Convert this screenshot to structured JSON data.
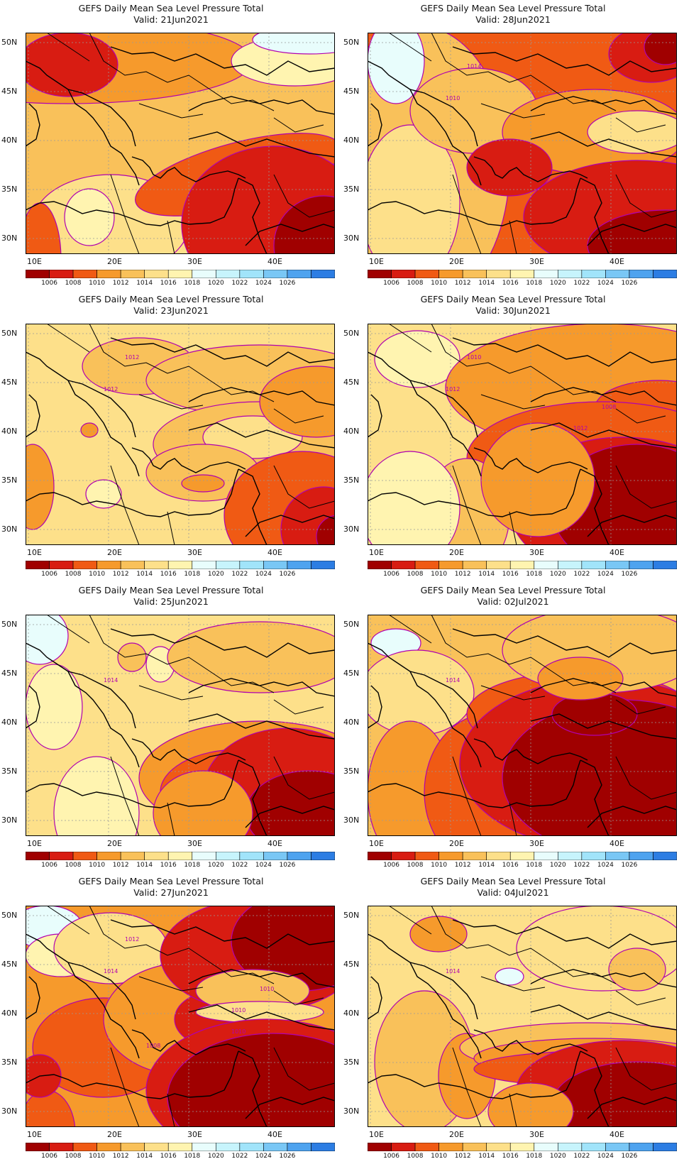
{
  "title": "GEFS Daily Mean Sea Level Pressure Total",
  "colorbar": {
    "colors": [
      "#a00000",
      "#d81c12",
      "#f05a14",
      "#f69a2c",
      "#f9c15a",
      "#fde08a",
      "#fff4b0",
      "#e8fdfc",
      "#c7f4fc",
      "#a1e4fa",
      "#79c7f5",
      "#4ea3ef",
      "#2c7de3"
    ],
    "ticks": [
      "1006",
      "1008",
      "1010",
      "1012",
      "1014",
      "1016",
      "1018",
      "1020",
      "1022",
      "1024",
      "1026"
    ]
  },
  "axes": {
    "lat_labels": [
      "50N",
      "45N",
      "40N",
      "35N",
      "30N"
    ],
    "lon_labels": [
      "10E",
      "20E",
      "30E",
      "40E"
    ]
  },
  "panels": [
    {
      "valid": "Valid: 21Jun2021",
      "contour_labels": []
    },
    {
      "valid": "Valid: 28Jun2021",
      "contour_labels": [
        "1010",
        "1014"
      ]
    },
    {
      "valid": "Valid: 23Jun2021",
      "contour_labels": [
        "1012",
        "1012"
      ]
    },
    {
      "valid": "Valid: 30Jun2021",
      "contour_labels": [
        "1012",
        "1010",
        "1012",
        "1008"
      ]
    },
    {
      "valid": "Valid: 25Jun2021",
      "contour_labels": [
        "1014"
      ]
    },
    {
      "valid": "Valid: 02Jul2021",
      "contour_labels": [
        "1014"
      ]
    },
    {
      "valid": "Valid: 27Jun2021",
      "contour_labels": [
        "1014",
        "1012",
        "1010",
        "1010",
        "1010",
        "1008"
      ]
    },
    {
      "valid": "Valid: 04Jul2021",
      "contour_labels": [
        "1014"
      ]
    }
  ]
}
